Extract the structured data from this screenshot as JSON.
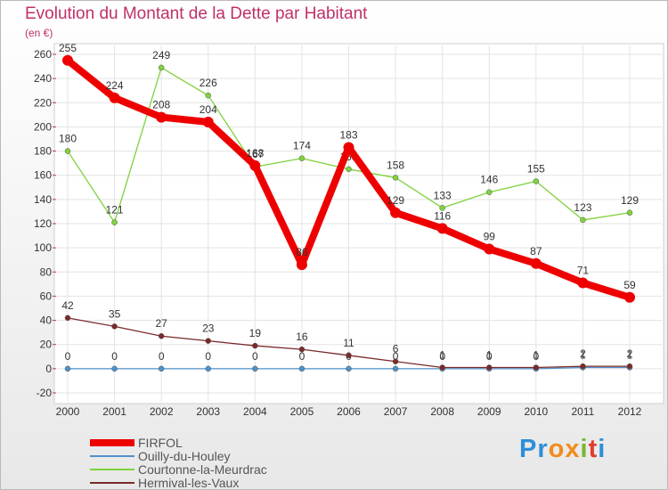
{
  "title": "Evolution du Montant de la Dette par Habitant",
  "unit": "(en €)",
  "logo": {
    "text": "Proxiti",
    "colors": [
      "#2f8fd8",
      "#2f8fd8",
      "#f08c1e",
      "#f08c1e",
      "#7ab62f",
      "#e23c2f",
      "#2f8fd8"
    ]
  },
  "chart_data": {
    "type": "line",
    "x": [
      "2000",
      "2001",
      "2002",
      "2003",
      "2004",
      "2005",
      "2006",
      "2007",
      "2008",
      "2009",
      "2010",
      "2011",
      "2012"
    ],
    "ylim": [
      -20,
      260
    ],
    "yticks": [
      -20,
      0,
      20,
      40,
      60,
      80,
      100,
      120,
      140,
      160,
      180,
      200,
      220,
      240,
      260
    ],
    "grid": true,
    "legend": "bottom-left",
    "series": [
      {
        "name": "Ouilly-du-Houley",
        "color": "#4f91c9",
        "values": [
          0,
          0,
          0,
          0,
          0,
          0,
          0,
          0,
          0,
          0,
          0,
          1,
          1
        ],
        "labels": [
          "0",
          "0",
          "0",
          "0",
          "0",
          "0",
          "0",
          "0",
          "0",
          "0",
          "0",
          "1",
          "1"
        ]
      },
      {
        "name": "Courtonne-la-Meurdrac",
        "color": "#7ed23c",
        "values": [
          180,
          121,
          249,
          226,
          167,
          174,
          165,
          158,
          133,
          146,
          155,
          123,
          129
        ],
        "labels": [
          "180",
          "121",
          "249",
          "226",
          "167",
          "174",
          "165",
          "158",
          "133",
          "146",
          "155",
          "123",
          "129"
        ]
      },
      {
        "name": "Hermival-les-Vaux",
        "color": "#7a2a2a",
        "values": [
          42,
          35,
          27,
          23,
          19,
          16,
          11,
          6,
          1,
          1,
          1,
          2,
          2
        ],
        "labels": [
          "42",
          "35",
          "27",
          "23",
          "19",
          "16",
          "11",
          "6",
          "1",
          "1",
          "1",
          "2",
          "2"
        ]
      },
      {
        "name": "FIRFOL",
        "color": "#ee0000",
        "values": [
          255,
          224,
          208,
          204,
          168,
          86,
          183,
          129,
          116,
          99,
          87,
          71,
          59
        ],
        "labels": [
          "255",
          "224",
          "208",
          "204",
          "168",
          "86",
          "183",
          "129",
          "116",
          "99",
          "87",
          "71",
          "59"
        ]
      }
    ]
  }
}
